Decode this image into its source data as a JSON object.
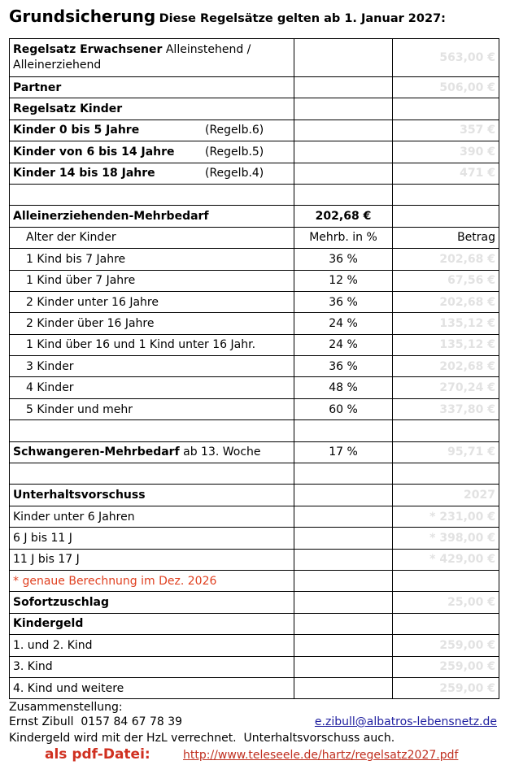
{
  "header": {
    "title": "Grundsicherung",
    "subtitle": "Diese Regelsätze gelten ab 1. Januar 2027:"
  },
  "table": {
    "rows": [
      {
        "bold": "Regelsatz Erwachsener",
        "text": "Alleinstehend / Alleinerziehend",
        "amount": "563,00 €"
      },
      {
        "bold": "Partner",
        "amount": "506,00 €"
      },
      {
        "bold": "Regelsatz Kinder"
      },
      {
        "bold": "Kinder 0 bis 5 Jahre",
        "tag": "(Regelb.6)",
        "amount": "357 €"
      },
      {
        "bold": "Kinder von 6 bis 14 Jahre",
        "tag": "(Regelb.5)",
        "amount": "390 €"
      },
      {
        "bold": "Kinder 14 bis 18 Jahre",
        "tag": "(Regelb.4)",
        "amount": "471 €"
      },
      {},
      {
        "bold": "Alleinerziehenden-Mehrbedarf",
        "rate": "202,68 €"
      },
      {
        "text": "Alter der Kinder",
        "rate": "Mehrb. in %",
        "amount": "Betrag"
      },
      {
        "text": "1 Kind bis 7 Jahre",
        "rate": "36 %",
        "amount": "202,68 €"
      },
      {
        "text": "1 Kind über 7 Jahre",
        "rate": "12 %",
        "amount": "67,56 €"
      },
      {
        "text": "2 Kinder unter 16 Jahre",
        "rate": "36 %",
        "amount": "202,68 €"
      },
      {
        "text": "2 Kinder über 16 Jahre",
        "rate": "24 %",
        "amount": "135,12 €"
      },
      {
        "text": "1 Kind über 16 und 1 Kind unter 16 Jahr.",
        "rate": "24 %",
        "amount": "135,12 €"
      },
      {
        "text": "3 Kinder",
        "rate": "36 %",
        "amount": "202,68 €"
      },
      {
        "text": "4 Kinder",
        "rate": "48 %",
        "amount": "270,24 €"
      },
      {
        "text": "5 Kinder und mehr",
        "rate": "60 %",
        "amount": "337,80 €"
      },
      {},
      {
        "bold": "Schwangeren-Mehrbedarf",
        "text": "ab 13. Woche",
        "rate": "17 %",
        "amount": "95,71 €"
      },
      {},
      {
        "bold": "Unterhaltsvorschuss",
        "amount": "2027"
      },
      {
        "text": "Kinder unter 6 Jahren",
        "amount": "* 231,00 €"
      },
      {
        "text": "6 J bis 11 J",
        "amount": "* 398,00 €"
      },
      {
        "text": "11 J bis 17 J",
        "amount": "* 429,00 €"
      },
      {
        "text": "* genaue Berechnung im Dez. 2026"
      },
      {
        "bold": "Sofortzuschlag",
        "amount": "25,00 €"
      },
      {
        "bold": "Kindergeld"
      },
      {
        "text": "1. und 2. Kind",
        "amount": "259,00 €"
      },
      {
        "text": "3. Kind",
        "amount": "259,00 €"
      },
      {
        "text": "4. Kind und weitere",
        "amount": "259,00 €"
      }
    ]
  },
  "footer": {
    "compiled": "Zusammenstellung:",
    "author": "Ernst Zibull  0157 84 67 78 39",
    "email": "e.zibull@albatros-lebensnetz.de",
    "note": "Kindergeld wird mit der HzL verrechnet.  Unterhaltsvorschuss auch.",
    "pdf_label": "als pdf-Datei:",
    "pdf_link": "http://www.teleseele.de/hartz/regelsatz2027.pdf"
  }
}
